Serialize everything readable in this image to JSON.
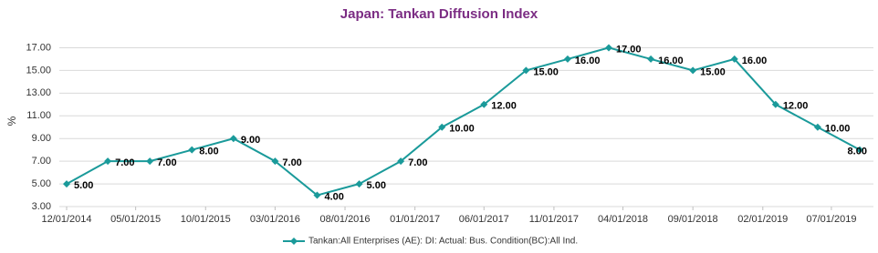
{
  "chart_data": {
    "type": "line",
    "title": "Japan: Tankan Diffusion Index",
    "y_label": "%",
    "x": [
      "12/01/2014",
      "03/01/2015",
      "06/01/2015",
      "09/01/2015",
      "12/01/2015",
      "03/01/2016",
      "06/01/2016",
      "09/01/2016",
      "12/01/2016",
      "03/01/2017",
      "06/01/2017",
      "09/01/2017",
      "12/01/2017",
      "03/01/2018",
      "06/01/2018",
      "09/01/2018",
      "12/01/2018",
      "03/01/2019",
      "06/01/2019",
      "09/01/2019"
    ],
    "series": [
      {
        "name": "Tankan:All Enterprises (AE): DI: Actual: Bus. Condition(BC):All Ind.",
        "color": "#1a9a9a",
        "values": [
          5,
          7,
          7,
          8,
          9,
          7,
          4,
          5,
          7,
          10,
          12,
          15,
          16,
          17,
          16,
          15,
          16,
          12,
          10,
          8
        ],
        "value_labels": [
          "5.00",
          "7.00",
          "7.00",
          "8.00",
          "9.00",
          "7.00",
          "4.00",
          "5.00",
          "7.00",
          "10.00",
          "12.00",
          "15.00",
          "16.00",
          "17.00",
          "16.00",
          "15.00",
          "16.00",
          "12.00",
          "10.00",
          "8.00"
        ]
      }
    ],
    "xlim": [
      "11/15/2014",
      "10/01/2019"
    ],
    "xticks": [
      "12/01/2014",
      "05/01/2015",
      "10/01/2015",
      "03/01/2016",
      "08/01/2016",
      "01/01/2017",
      "06/01/2017",
      "11/01/2017",
      "04/01/2018",
      "09/01/2018",
      "02/01/2019",
      "07/01/2019"
    ],
    "ylim": [
      3,
      18
    ],
    "yticks": [
      {
        "value": 3,
        "label": "3.00"
      },
      {
        "value": 5,
        "label": "5.00"
      },
      {
        "value": 7,
        "label": "7.00"
      },
      {
        "value": 9,
        "label": "9.00"
      },
      {
        "value": 11,
        "label": "11.00"
      },
      {
        "value": 13,
        "label": "13.00"
      },
      {
        "value": 15,
        "label": "15.00"
      },
      {
        "value": 17,
        "label": "17.00"
      }
    ],
    "grid": true,
    "legend": "bottom"
  }
}
